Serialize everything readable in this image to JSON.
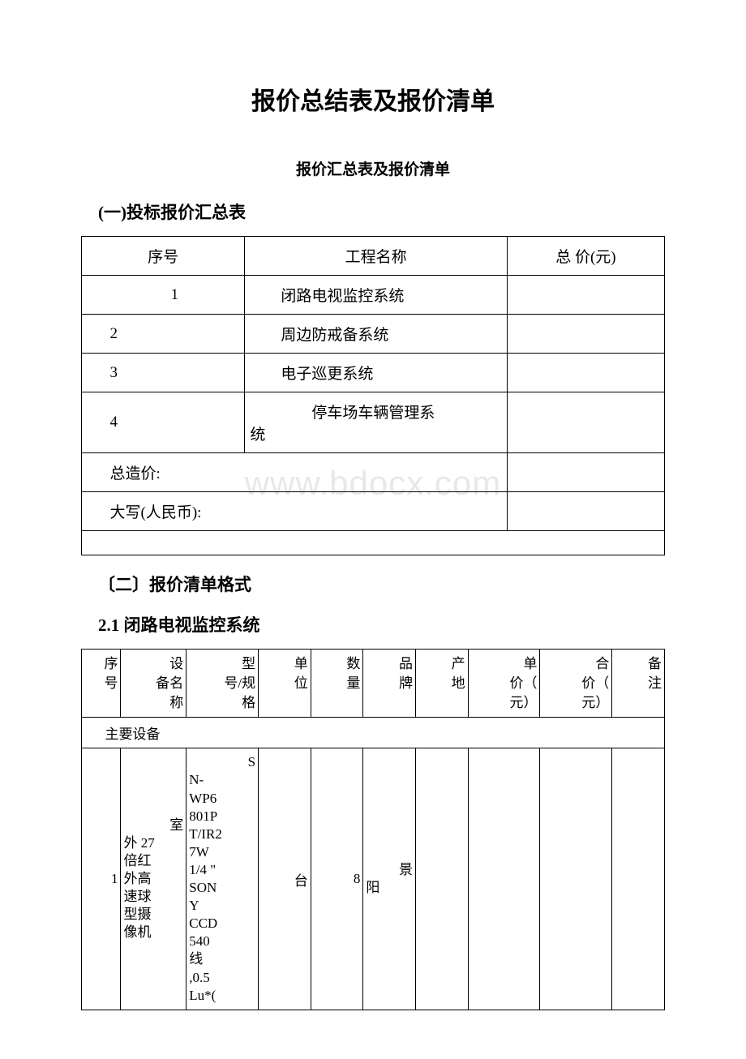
{
  "watermark": "www.bdocx.com",
  "main_title": "报价总结表及报价清单",
  "subtitle": "报价汇总表及报价清单",
  "section1": {
    "heading": "(一)投标报价汇总表",
    "table": {
      "columns": [
        "序号",
        "工程名称",
        "总 价(元)"
      ],
      "rows": [
        {
          "seq": "1",
          "name": "闭路电视监控系统",
          "price": ""
        },
        {
          "seq": "2",
          "name": "周边防戒备系统",
          "price": ""
        },
        {
          "seq": "3",
          "name": "电子巡更系统",
          "price": ""
        },
        {
          "seq": "4",
          "name": "停车场车辆管理系统",
          "price": ""
        }
      ],
      "total_label": "总造价:",
      "total_value": "",
      "capital_label": "大写(人民币):",
      "capital_value": ""
    }
  },
  "section2": {
    "heading": "〔二〕报价清单格式",
    "subsection": "2.1 闭路电视监控系统",
    "table": {
      "columns": [
        "序号",
        "设备名称",
        "型号/规格",
        "单位",
        "数量",
        "品牌",
        "产地",
        "单价（元）",
        "合价（元）",
        "备注"
      ],
      "section_label": "主要设备",
      "rows": [
        {
          "seq": "1",
          "name": "室外 27倍红外高速球型摄像机",
          "model": "SN-WP6801PT/IR27W 1/4 \" SONY CCD 540线 ,0.5 Lu*(",
          "unit": "台",
          "qty": "8",
          "brand": "景阳",
          "origin": "",
          "uprice": "",
          "tprice": "",
          "remark": ""
        }
      ]
    }
  },
  "styling": {
    "background_color": "#ffffff",
    "border_color": "#000000",
    "text_color": "#000000",
    "watermark_color": "#e8e8e8",
    "title_fontsize": 30,
    "subtitle_fontsize": 19,
    "heading_fontsize": 21,
    "table_fontsize": 19,
    "detail_table_fontsize": 17
  }
}
